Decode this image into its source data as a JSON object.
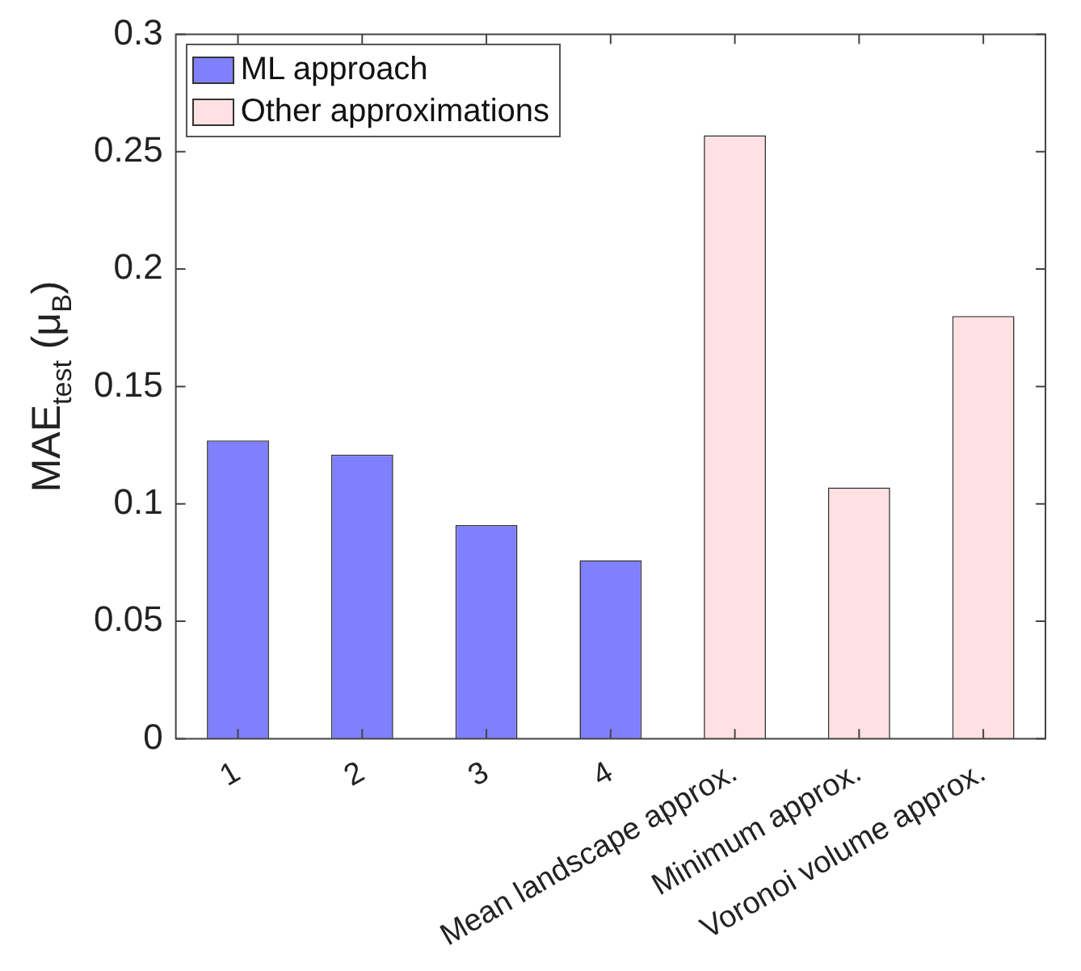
{
  "chart_data": {
    "type": "bar",
    "ylabel": "MAE$_{test}$ (μ$_{B}$)",
    "categories": [
      "1",
      "2",
      "3",
      "4",
      "Mean landscape approx.",
      "Minimum approx.",
      "Voronoi volume approx."
    ],
    "series": [
      {
        "name": "ML approach",
        "color": "#8080ff",
        "values": [
          0.127,
          0.121,
          0.091,
          0.076,
          null,
          null,
          null
        ]
      },
      {
        "name": "Other approximations",
        "color": "#ffe0e3",
        "values": [
          null,
          null,
          null,
          null,
          0.257,
          0.107,
          0.18
        ]
      }
    ],
    "ylim": [
      0,
      0.3
    ],
    "yticks": [
      0,
      0.05,
      0.1,
      0.15,
      0.2,
      0.25,
      0.3
    ],
    "grid": false,
    "legend": "top left"
  }
}
